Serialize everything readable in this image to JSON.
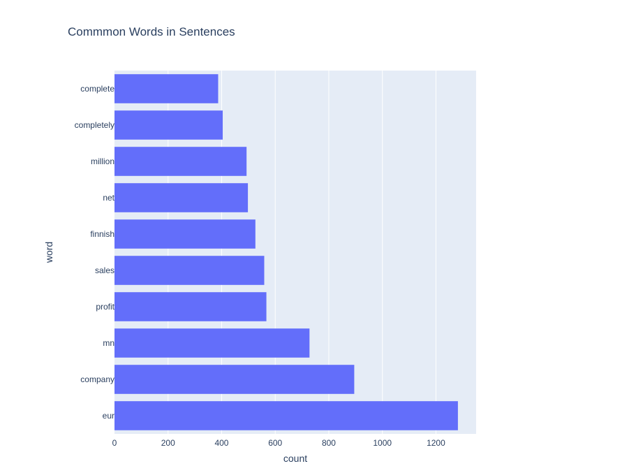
{
  "chart_data": {
    "type": "bar",
    "orientation": "horizontal",
    "title": "Commmon Words in Sentences",
    "xlabel": "count",
    "ylabel": "word",
    "categories": [
      "complete",
      "completely",
      "million",
      "net",
      "finnish",
      "sales",
      "profit",
      "mn",
      "company",
      "eur"
    ],
    "values": [
      387,
      404,
      493,
      498,
      526,
      559,
      567,
      728,
      895,
      1282
    ],
    "xlim": [
      0,
      1350
    ],
    "xticks": [
      0,
      200,
      400,
      600,
      800,
      1000,
      1200
    ],
    "grid": true,
    "legend": "none"
  },
  "colors": {
    "bar": "#636efa",
    "plot_background": "#e5ecf6",
    "text": "#2a3f5f",
    "grid": "#ffffff"
  }
}
